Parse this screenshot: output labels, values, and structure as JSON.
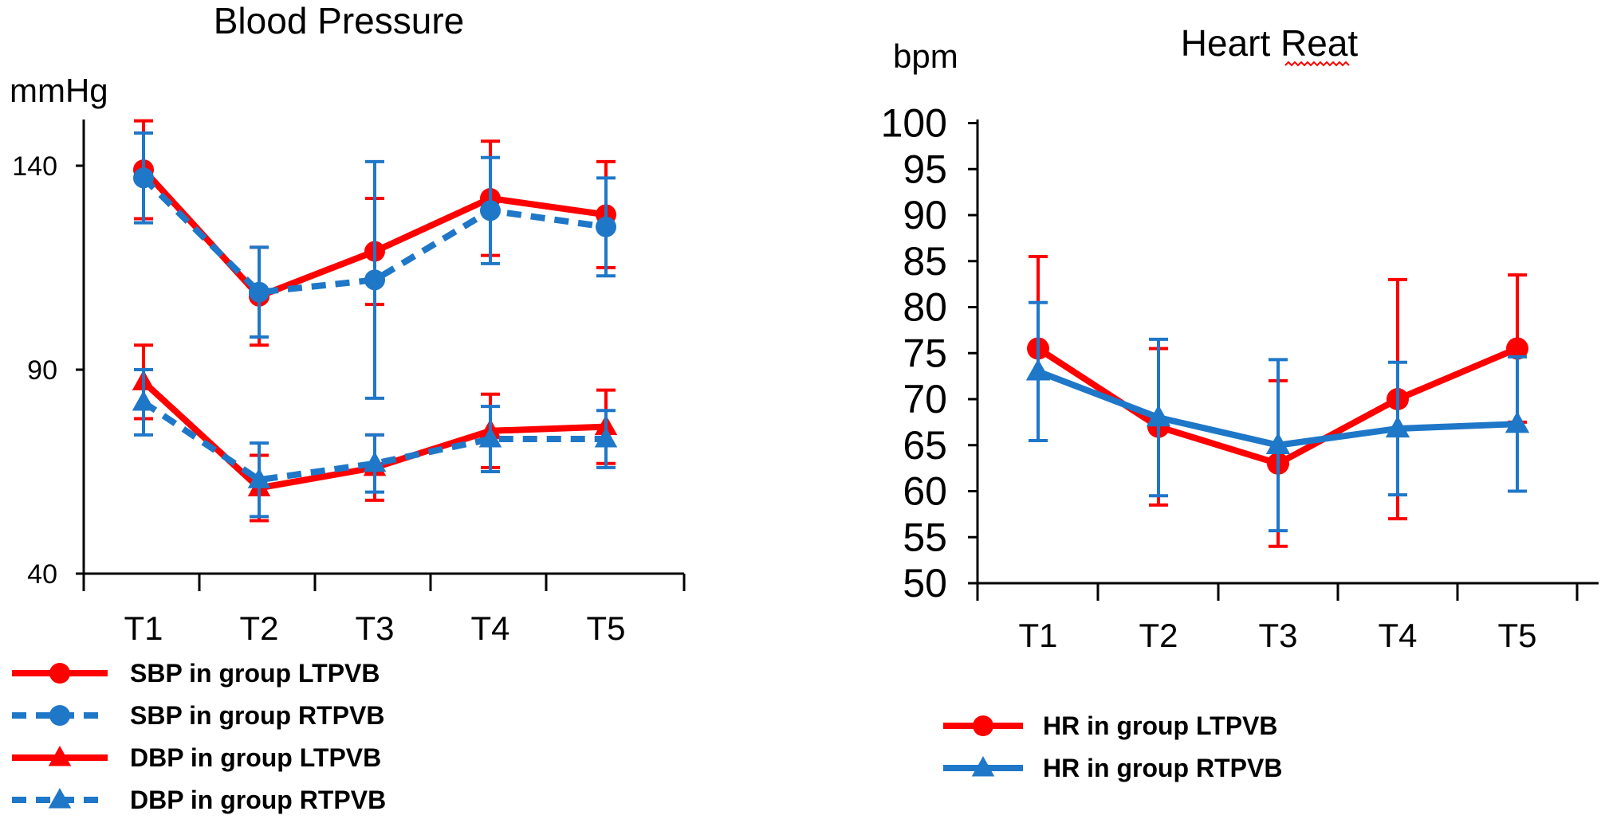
{
  "colors": {
    "ltpvb": "#ff0000",
    "rtpvb": "#1f77c8",
    "axis": "#000000",
    "background": "#ffffff"
  },
  "chart_data": [
    {
      "id": "bp",
      "type": "line",
      "title": "Blood Pressure",
      "ylabel": "mmHg",
      "xlabel": "",
      "categories": [
        "T1",
        "T2",
        "T3",
        "T4",
        "T5"
      ],
      "ylim": [
        40,
        150
      ],
      "yticks": [
        40,
        90,
        140
      ],
      "grid": false,
      "legend_position": "bottom-left",
      "series": [
        {
          "name": "SBP in group LTPVB",
          "color": "#ff0000",
          "marker": "circle",
          "dash": "solid",
          "values": [
            139,
            108,
            119,
            132,
            128
          ],
          "error": [
            12,
            12,
            13,
            14,
            13
          ]
        },
        {
          "name": "SBP in group RTPVB",
          "color": "#1f77c8",
          "marker": "circle",
          "dash": "dashed",
          "values": [
            137,
            109,
            112,
            129,
            125
          ],
          "error": [
            11,
            11,
            29,
            13,
            12
          ]
        },
        {
          "name": "DBP in group LTPVB",
          "color": "#ff0000",
          "marker": "triangle",
          "dash": "solid",
          "values": [
            87,
            61,
            66,
            75,
            76
          ],
          "error": [
            9,
            8,
            8,
            9,
            9
          ]
        },
        {
          "name": "DBP in group RTPVB",
          "color": "#1f77c8",
          "marker": "triangle",
          "dash": "dashed",
          "values": [
            82,
            63,
            67,
            73,
            73
          ],
          "error": [
            8,
            9,
            7,
            8,
            7
          ]
        }
      ]
    },
    {
      "id": "hr",
      "type": "line",
      "title": "Heart Reat",
      "ylabel": "bpm",
      "xlabel": "",
      "categories": [
        "T1",
        "T2",
        "T3",
        "T4",
        "T5"
      ],
      "ylim": [
        50,
        100
      ],
      "yticks": [
        50,
        55,
        60,
        65,
        70,
        75,
        80,
        85,
        90,
        95,
        100
      ],
      "grid": false,
      "legend_position": "bottom",
      "series": [
        {
          "name": "HR in group LTPVB",
          "color": "#ff0000",
          "marker": "circle",
          "dash": "solid",
          "values": [
            75.5,
            67,
            63,
            70,
            75.5
          ],
          "error": [
            10,
            8.5,
            9,
            13,
            8
          ]
        },
        {
          "name": "HR in group RTPVB",
          "color": "#1f77c8",
          "marker": "triangle",
          "dash": "solid",
          "values": [
            73,
            68,
            65,
            66.8,
            67.3
          ],
          "error": [
            7.5,
            8.5,
            9.3,
            7.2,
            7.3
          ]
        }
      ]
    }
  ]
}
